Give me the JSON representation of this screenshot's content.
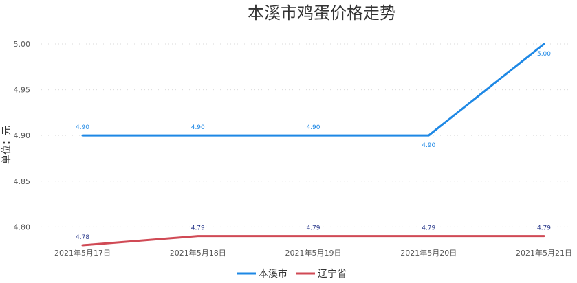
{
  "chart_data": {
    "type": "line",
    "title": "本溪市鸡蛋价格走势",
    "xlabel": "",
    "ylabel": "单位：元",
    "categories": [
      "2021年5月17日",
      "2021年5月18日",
      "2021年5月19日",
      "2021年5月20日",
      "2021年5月21日"
    ],
    "ylim": [
      4.78,
      5.0
    ],
    "yticks": [
      "4.80",
      "4.85",
      "4.90",
      "4.95",
      "5.00"
    ],
    "grid": true,
    "legend_position": "bottom",
    "series": [
      {
        "name": "本溪市",
        "color": "#1e88e5",
        "label_color": "#1e88e5",
        "values": [
          4.9,
          4.9,
          4.9,
          4.9,
          5.0
        ],
        "labels": [
          "4.90",
          "4.90",
          "4.90",
          "4.90",
          "5.00"
        ]
      },
      {
        "name": "辽宁省",
        "color": "#d04a55",
        "label_color": "#2a3a8c",
        "values": [
          4.78,
          4.79,
          4.79,
          4.79,
          4.79
        ],
        "labels": [
          "4.78",
          "4.79",
          "4.79",
          "4.79",
          "4.79"
        ]
      }
    ]
  }
}
